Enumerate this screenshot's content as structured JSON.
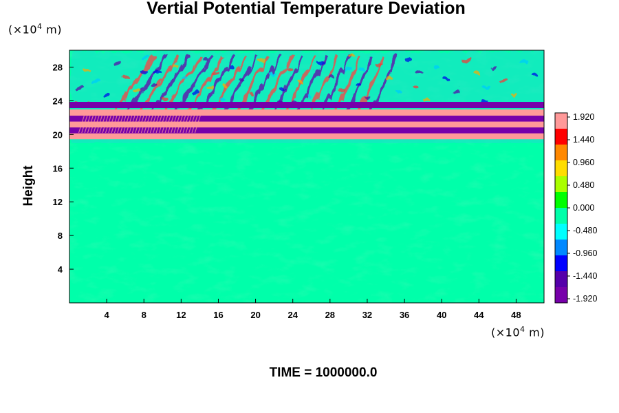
{
  "chart_data": {
    "type": "heatmap",
    "title": "Vertial Potential Temperature Deviation",
    "ylabel": "Height",
    "xunit": "(×10⁴ m)",
    "yunit": "(×10⁴ m)",
    "xlim": [
      0,
      51
    ],
    "ylim": [
      0,
      30
    ],
    "xticks": [
      4,
      8,
      12,
      16,
      20,
      24,
      28,
      32,
      36,
      40,
      44,
      48
    ],
    "yticks": [
      4,
      8,
      12,
      16,
      20,
      24,
      28
    ],
    "colorbar": {
      "min": -1.92,
      "max": 1.92,
      "labels": [
        "1.920",
        "1.440",
        "0.960",
        "0.480",
        "0.000",
        "-0.480",
        "-0.960",
        "-1.440",
        "-1.920"
      ],
      "colors": [
        "#ff9999",
        "#ff0000",
        "#ff8800",
        "#ffdd00",
        "#aaff00",
        "#00ff00",
        "#00ffaa",
        "#00ffff",
        "#0088ff",
        "#0000ff",
        "#5500aa",
        "#7700aa"
      ]
    },
    "bands": [
      {
        "y": 19.8,
        "value": 1.92
      },
      {
        "y": 20.5,
        "value": -1.92
      },
      {
        "y": 21.2,
        "value": 1.92
      },
      {
        "y": 21.9,
        "value": -1.92
      },
      {
        "y": 22.6,
        "value": 1.92
      },
      {
        "y": 23.5,
        "value": -1.92
      }
    ],
    "background_value": 0.0,
    "grid": false,
    "legend": "colorbar right"
  },
  "footer": {
    "time_label": "TIME = 1000000.0"
  }
}
